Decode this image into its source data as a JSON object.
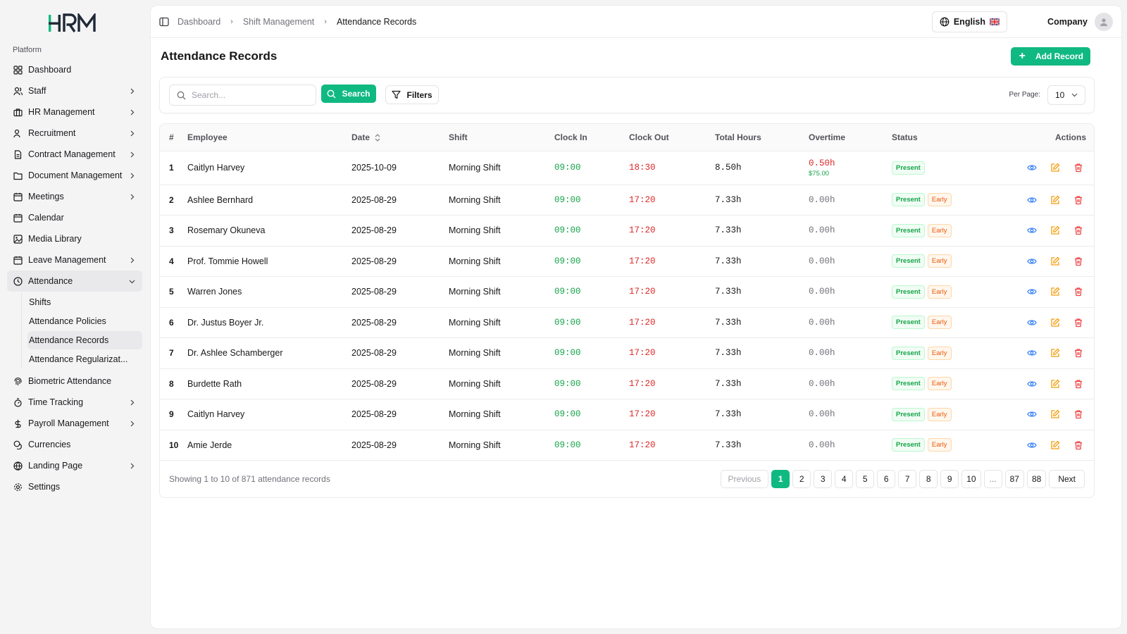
{
  "brand": {
    "logo_text": "HRM",
    "accent": "#10b981"
  },
  "sidebar": {
    "group_label": "Platform",
    "items": [
      {
        "label": "Dashboard",
        "icon": "layout-grid-icon",
        "chevron": false
      },
      {
        "label": "Staff",
        "icon": "users-icon",
        "chevron": true
      },
      {
        "label": "HR Management",
        "icon": "briefcase-icon",
        "chevron": true
      },
      {
        "label": "Recruitment",
        "icon": "user-plus-icon",
        "chevron": true
      },
      {
        "label": "Contract Management",
        "icon": "file-text-icon",
        "chevron": true
      },
      {
        "label": "Document Management",
        "icon": "folder-icon",
        "chevron": true
      },
      {
        "label": "Meetings",
        "icon": "calendar-icon",
        "chevron": true
      },
      {
        "label": "Calendar",
        "icon": "calendar-icon",
        "chevron": false
      },
      {
        "label": "Media Library",
        "icon": "image-icon",
        "chevron": false
      },
      {
        "label": "Leave Management",
        "icon": "calendar-icon",
        "chevron": true
      },
      {
        "label": "Attendance",
        "icon": "clock-icon",
        "chevron": true,
        "expanded": true
      }
    ],
    "attendance_sub": [
      "Shifts",
      "Attendance Policies",
      "Attendance Records",
      "Attendance Regularizat..."
    ],
    "items_after": [
      {
        "label": "Biometric Attendance",
        "icon": "fingerprint-icon",
        "chevron": false
      },
      {
        "label": "Time Tracking",
        "icon": "timer-icon",
        "chevron": true
      },
      {
        "label": "Payroll Management",
        "icon": "dollar-icon",
        "chevron": true
      },
      {
        "label": "Currencies",
        "icon": "coins-icon",
        "chevron": false
      },
      {
        "label": "Landing Page",
        "icon": "globe-icon",
        "chevron": true
      },
      {
        "label": "Settings",
        "icon": "gear-icon",
        "chevron": false
      }
    ]
  },
  "header": {
    "breadcrumbs": [
      "Dashboard",
      "Shift Management",
      "Attendance Records"
    ],
    "language": "English",
    "company": "Company"
  },
  "page": {
    "title": "Attendance Records",
    "add_button": "Add Record"
  },
  "filters": {
    "search_placeholder": "Search...",
    "search_button": "Search",
    "filters_button": "Filters",
    "per_page_label": "Per Page:",
    "per_page_value": "10"
  },
  "table": {
    "columns": [
      "#",
      "Employee",
      "Date",
      "Shift",
      "Clock In",
      "Clock Out",
      "Total Hours",
      "Overtime",
      "Status",
      "Actions"
    ],
    "rows": [
      {
        "num": "1",
        "employee": "Caitlyn Harvey",
        "date": "2025-10-09",
        "shift": "Morning Shift",
        "clock_in": "09:00",
        "clock_out": "18:30",
        "total": "8.50h",
        "overtime": "0.50h",
        "overtime_amount": "$75.00",
        "status": "Present",
        "flag": ""
      },
      {
        "num": "2",
        "employee": "Ashlee Bernhard",
        "date": "2025-08-29",
        "shift": "Morning Shift",
        "clock_in": "09:00",
        "clock_out": "17:20",
        "total": "7.33h",
        "overtime": "0.00h",
        "overtime_amount": "",
        "status": "Present",
        "flag": "Early"
      },
      {
        "num": "3",
        "employee": "Rosemary Okuneva",
        "date": "2025-08-29",
        "shift": "Morning Shift",
        "clock_in": "09:00",
        "clock_out": "17:20",
        "total": "7.33h",
        "overtime": "0.00h",
        "overtime_amount": "",
        "status": "Present",
        "flag": "Early"
      },
      {
        "num": "4",
        "employee": "Prof. Tommie Howell",
        "date": "2025-08-29",
        "shift": "Morning Shift",
        "clock_in": "09:00",
        "clock_out": "17:20",
        "total": "7.33h",
        "overtime": "0.00h",
        "overtime_amount": "",
        "status": "Present",
        "flag": "Early"
      },
      {
        "num": "5",
        "employee": "Warren Jones",
        "date": "2025-08-29",
        "shift": "Morning Shift",
        "clock_in": "09:00",
        "clock_out": "17:20",
        "total": "7.33h",
        "overtime": "0.00h",
        "overtime_amount": "",
        "status": "Present",
        "flag": "Early"
      },
      {
        "num": "6",
        "employee": "Dr. Justus Boyer Jr.",
        "date": "2025-08-29",
        "shift": "Morning Shift",
        "clock_in": "09:00",
        "clock_out": "17:20",
        "total": "7.33h",
        "overtime": "0.00h",
        "overtime_amount": "",
        "status": "Present",
        "flag": "Early"
      },
      {
        "num": "7",
        "employee": "Dr. Ashlee Schamberger",
        "date": "2025-08-29",
        "shift": "Morning Shift",
        "clock_in": "09:00",
        "clock_out": "17:20",
        "total": "7.33h",
        "overtime": "0.00h",
        "overtime_amount": "",
        "status": "Present",
        "flag": "Early"
      },
      {
        "num": "8",
        "employee": "Burdette Rath",
        "date": "2025-08-29",
        "shift": "Morning Shift",
        "clock_in": "09:00",
        "clock_out": "17:20",
        "total": "7.33h",
        "overtime": "0.00h",
        "overtime_amount": "",
        "status": "Present",
        "flag": "Early"
      },
      {
        "num": "9",
        "employee": "Caitlyn Harvey",
        "date": "2025-08-29",
        "shift": "Morning Shift",
        "clock_in": "09:00",
        "clock_out": "17:20",
        "total": "7.33h",
        "overtime": "0.00h",
        "overtime_amount": "",
        "status": "Present",
        "flag": "Early"
      },
      {
        "num": "10",
        "employee": "Amie Jerde",
        "date": "2025-08-29",
        "shift": "Morning Shift",
        "clock_in": "09:00",
        "clock_out": "17:20",
        "total": "7.33h",
        "overtime": "0.00h",
        "overtime_amount": "",
        "status": "Present",
        "flag": "Early"
      }
    ]
  },
  "pagination": {
    "summary": "Showing 1 to 10 of 871 attendance records",
    "previous": "Previous",
    "next": "Next",
    "pages": [
      "1",
      "2",
      "3",
      "4",
      "5",
      "6",
      "7",
      "8",
      "9",
      "10",
      "...",
      "87",
      "88"
    ],
    "current": "1"
  }
}
